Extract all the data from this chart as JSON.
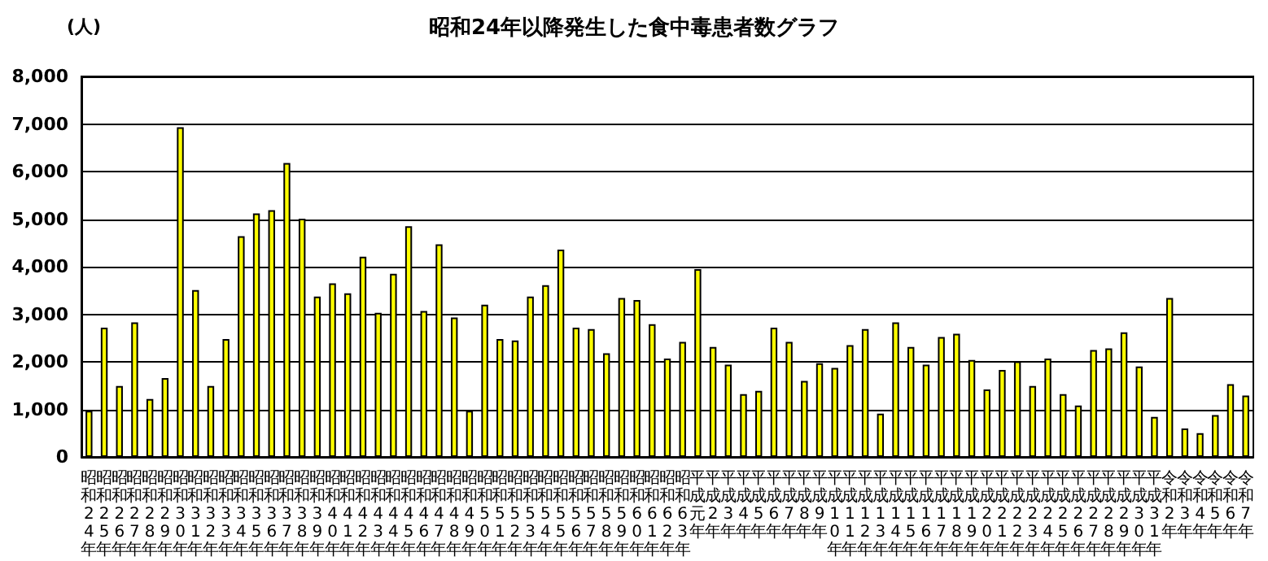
{
  "chart_data": {
    "type": "bar",
    "title": "昭和24年以降発生した食中毒患者数グラフ",
    "ylabel": "(人)",
    "categories": [
      "昭和24年",
      "昭和25年",
      "昭和26年",
      "昭和27年",
      "昭和28年",
      "昭和29年",
      "昭和30年",
      "昭和31年",
      "昭和32年",
      "昭和33年",
      "昭和34年",
      "昭和35年",
      "昭和36年",
      "昭和37年",
      "昭和38年",
      "昭和39年",
      "昭和40年",
      "昭和41年",
      "昭和42年",
      "昭和43年",
      "昭和44年",
      "昭和45年",
      "昭和46年",
      "昭和47年",
      "昭和48年",
      "昭和49年",
      "昭和50年",
      "昭和51年",
      "昭和52年",
      "昭和53年",
      "昭和54年",
      "昭和55年",
      "昭和56年",
      "昭和57年",
      "昭和58年",
      "昭和59年",
      "昭和60年",
      "昭和61年",
      "昭和62年",
      "昭和63年",
      "平成元年",
      "平成2年",
      "平成3年",
      "平成4年",
      "平成5年",
      "平成6年",
      "平成7年",
      "平成8年",
      "平成9年",
      "平成10年",
      "平成11年",
      "平成12年",
      "平成13年",
      "平成14年",
      "平成15年",
      "平成16年",
      "平成17年",
      "平成18年",
      "平成19年",
      "平成20年",
      "平成21年",
      "平成22年",
      "平成23年",
      "平成24年",
      "平成25年",
      "平成26年",
      "平成27年",
      "平成28年",
      "平成29年",
      "平成30年",
      "平成31年",
      "令和2年",
      "令和3年",
      "令和4年",
      "令和5年",
      "令和6年",
      "令和7年"
    ],
    "values": [
      970,
      2720,
      1490,
      2830,
      1220,
      1660,
      6930,
      3510,
      1490,
      2480,
      4640,
      5120,
      5190,
      6180,
      5010,
      3370,
      3650,
      3440,
      4210,
      3030,
      3850,
      4850,
      3070,
      4470,
      2930,
      970,
      3200,
      2480,
      2450,
      3370,
      3610,
      4360,
      2720,
      2690,
      2180,
      3340,
      3300,
      2790,
      2070,
      2420,
      3950,
      2310,
      1940,
      1320,
      1390,
      2720,
      2420,
      1600,
      1970,
      1870,
      2350,
      2690,
      910,
      2830,
      2310,
      1940,
      2520,
      2590,
      2040,
      1420,
      1830,
      2010,
      1490,
      2070,
      1320,
      1080,
      2250,
      2280,
      2620,
      1900,
      840,
      3340,
      600,
      500,
      880,
      1530,
      1290
    ],
    "color": "#ffff00",
    "ylim": [
      0,
      8000
    ],
    "yticks": [
      {
        "value": 0,
        "label": "0"
      },
      {
        "value": 1000,
        "label": "1,000"
      },
      {
        "value": 2000,
        "label": "2,000"
      },
      {
        "value": 3000,
        "label": "3,000"
      },
      {
        "value": 4000,
        "label": "4,000"
      },
      {
        "value": 5000,
        "label": "5,000"
      },
      {
        "value": 6000,
        "label": "6,000"
      },
      {
        "value": 7000,
        "label": "7,000"
      },
      {
        "value": 8000,
        "label": "8,000"
      }
    ],
    "grid": "y"
  }
}
